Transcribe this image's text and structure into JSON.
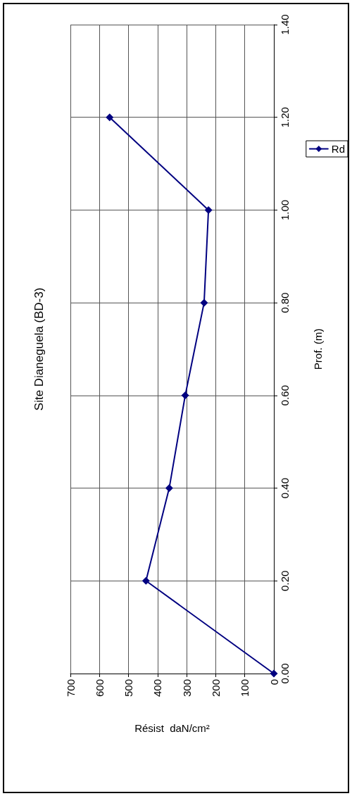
{
  "chart_data": {
    "type": "line",
    "title": "Site Dianeguela (BD-3)",
    "xlabel": "Résist  daN/cm²",
    "ylabel": "Prof. (m)",
    "x": [
      0,
      440,
      360,
      305,
      240,
      225,
      565
    ],
    "series": [
      {
        "name": "Rd",
        "color": "#000080",
        "values": [
          0,
          0.2,
          0.4,
          0.6,
          0.8,
          1.0,
          1.2
        ]
      }
    ],
    "ylim": [
      0,
      1.4
    ],
    "yticks": [
      {
        "value": 0,
        "label": "0.00"
      },
      {
        "value": 0.2,
        "label": "0.20"
      },
      {
        "value": 0.4,
        "label": "0.40"
      },
      {
        "value": 0.6,
        "label": "0.60"
      },
      {
        "value": 0.8,
        "label": "0.80"
      },
      {
        "value": 1.0,
        "label": "1.00"
      },
      {
        "value": 1.2,
        "label": "1.20"
      },
      {
        "value": 1.4,
        "label": "1.40"
      }
    ],
    "xlim": [
      700,
      0
    ],
    "xticks": [
      700,
      600,
      500,
      400,
      300,
      200,
      100,
      0
    ],
    "grid": true,
    "legend": "right",
    "marker": "diamond",
    "line_style": "solid"
  }
}
